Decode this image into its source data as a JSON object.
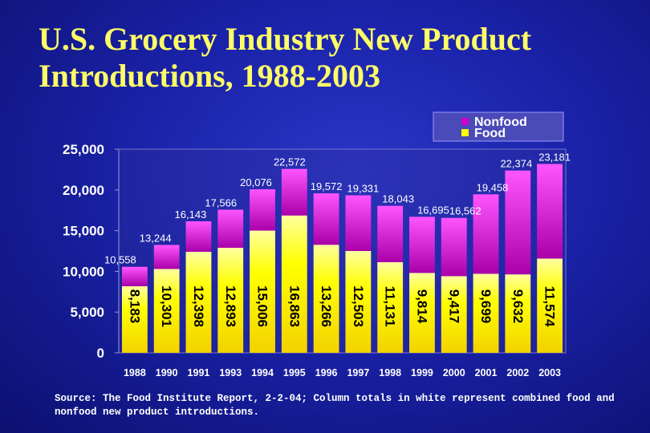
{
  "title": {
    "line1": "U.S. Grocery Industry New Product",
    "line2": "Introductions, 1988-2003"
  },
  "source_note": "Source: The Food Institute Report, 2-2-04; Column totals in white represent combined food and nonfood new product introductions.",
  "chart_data": {
    "type": "bar",
    "stacked": true,
    "categories": [
      "1988",
      "1990",
      "1991",
      "1993",
      "1994",
      "1995",
      "1996",
      "1997",
      "1998",
      "1999",
      "2000",
      "2001",
      "2002",
      "2003"
    ],
    "series": [
      {
        "name": "Food",
        "color": "#ffff00",
        "values": [
          8183,
          10301,
          12398,
          12893,
          15006,
          16863,
          13266,
          12503,
          11131,
          9814,
          9417,
          9699,
          9632,
          11574
        ],
        "labels": [
          "8,183",
          "10,301",
          "12,398",
          "12,893",
          "15,006",
          "16,863",
          "13,266",
          "12,503",
          "11,131",
          "9,814",
          "9,417",
          "9,699",
          "9,632",
          "11,574"
        ]
      },
      {
        "name": "Nonfood",
        "color": "#cc00cc",
        "values": [
          2375,
          2943,
          3745,
          4673,
          5070,
          5709,
          6306,
          6828,
          6912,
          6881,
          7145,
          9759,
          12742,
          11607
        ]
      }
    ],
    "totals": [
      10558,
      13244,
      16143,
      17566,
      20076,
      22572,
      19572,
      19331,
      18043,
      16695,
      16562,
      19458,
      22374,
      23181
    ],
    "total_labels": [
      "10,558",
      "13,244",
      "16,143",
      "17,566",
      "20,076",
      "22,572",
      "19,572",
      "19,331",
      "18,043",
      "16,695",
      "16,562",
      "19,458",
      "22,374",
      "23,181"
    ],
    "legend": [
      "Nonfood",
      "Food"
    ],
    "legend_position": "top-right",
    "ylim": [
      0,
      25000
    ],
    "yticks": [
      0,
      5000,
      10000,
      15000,
      20000,
      25000
    ],
    "ytick_labels": [
      "0",
      "5,000",
      "10,000",
      "15,000",
      "20,000",
      "25,000"
    ],
    "grid": false
  }
}
